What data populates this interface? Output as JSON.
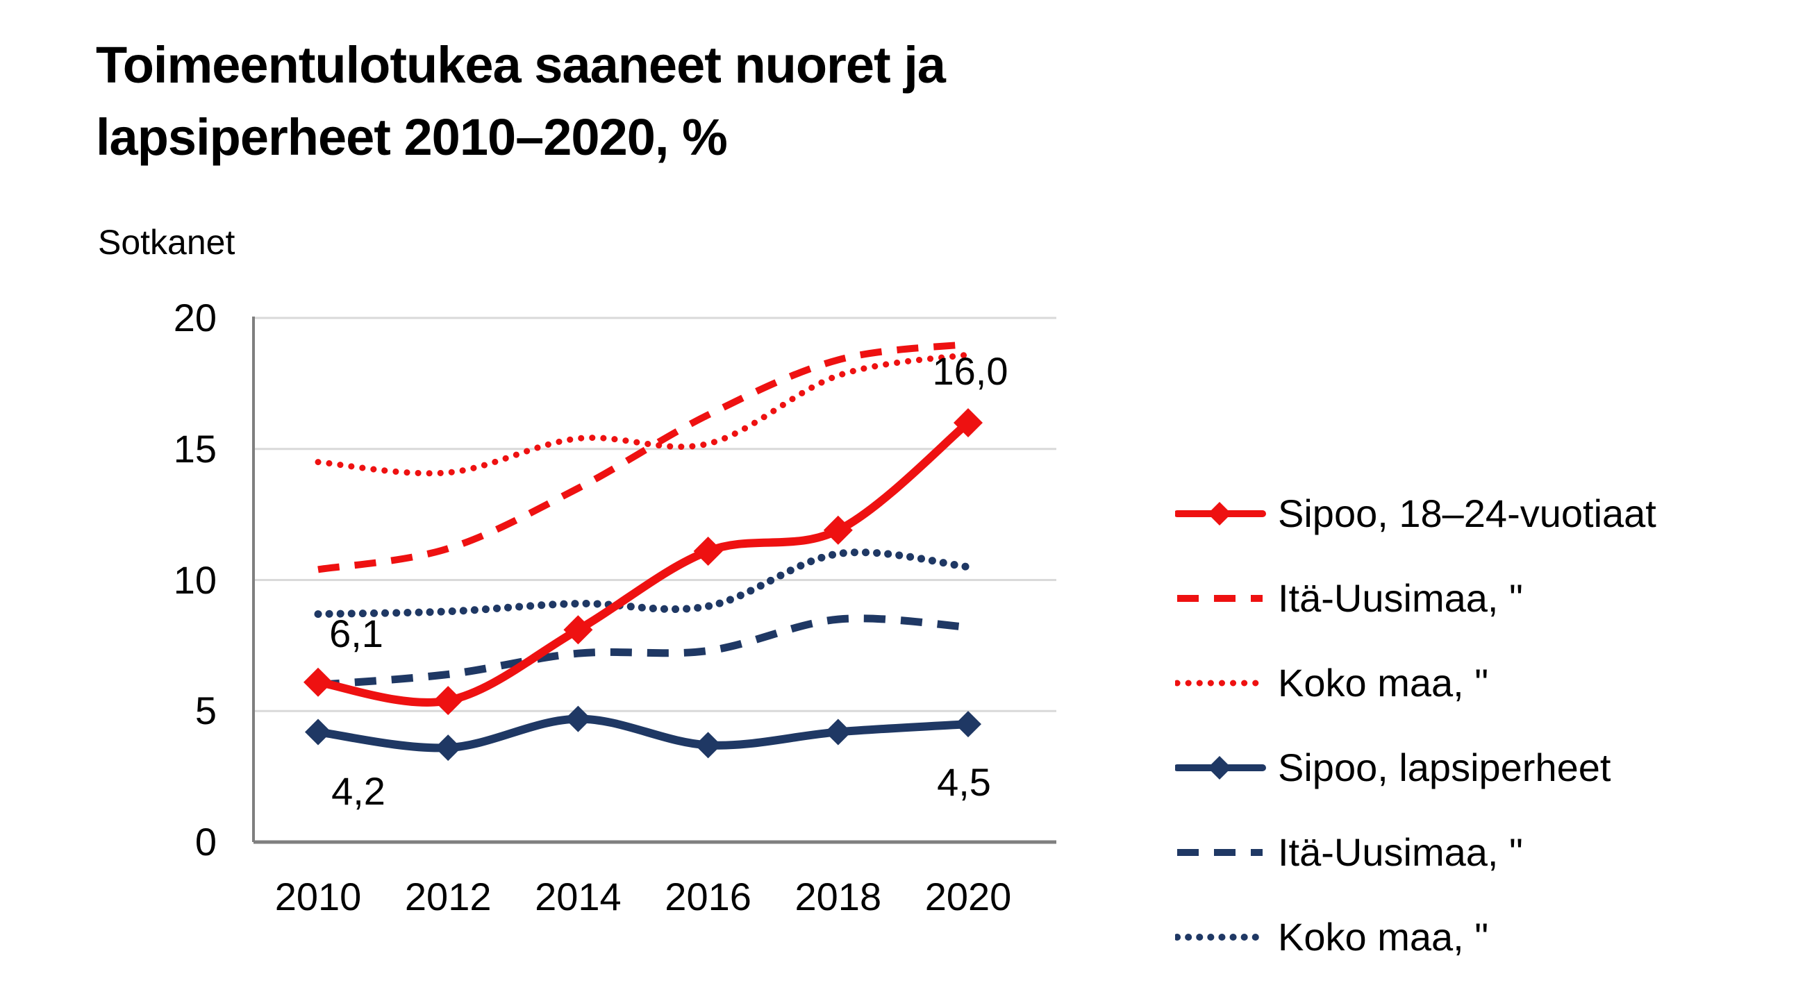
{
  "title": {
    "line1": "Toimeentulotukea saaneet nuoret ja",
    "line2": "lapsiperheet 2010–2020, %"
  },
  "subtitle": "Sotkanet",
  "chart_data": {
    "type": "line",
    "title": "Toimeentulotukea saaneet nuoret ja lapsiperheet 2010–2020, %",
    "subtitle": "Sotkanet",
    "x": [
      2010,
      2012,
      2014,
      2016,
      2018,
      2020
    ],
    "x_tick_labels": [
      "2010",
      "2012",
      "2014",
      "2016",
      "2018",
      "2020"
    ],
    "y_ticks": [
      0,
      5,
      10,
      15,
      20
    ],
    "ylim": [
      0,
      20
    ],
    "grid": "horizontal",
    "legend_position": "right",
    "series": [
      {
        "name": "Sipoo, 18–24-vuotiaat",
        "color": "#ee1111",
        "style": "solid",
        "marker": "diamond",
        "values": [
          6.1,
          5.4,
          8.1,
          11.1,
          11.9,
          16.0
        ]
      },
      {
        "name": "Itä-Uusimaa, \"",
        "color": "#ee1111",
        "style": "dashed",
        "marker": "none",
        "values": [
          10.4,
          11.2,
          13.5,
          16.3,
          18.4,
          19.0
        ]
      },
      {
        "name": "Koko maa, \"",
        "color": "#ee1111",
        "style": "dotted",
        "marker": "none",
        "values": [
          14.5,
          14.1,
          15.4,
          15.2,
          17.8,
          18.6
        ]
      },
      {
        "name": "Sipoo, lapsiperheet",
        "color": "#1f3864",
        "style": "solid",
        "marker": "diamond",
        "values": [
          4.2,
          3.6,
          4.7,
          3.7,
          4.2,
          4.5
        ]
      },
      {
        "name": "Itä-Uusimaa, \"",
        "color": "#1f3864",
        "style": "dashed",
        "marker": "none",
        "values": [
          6.0,
          6.4,
          7.2,
          7.3,
          8.5,
          8.2
        ]
      },
      {
        "name": "Koko maa, \"",
        "color": "#1f3864",
        "style": "dotted",
        "marker": "none",
        "values": [
          8.7,
          8.8,
          9.1,
          9.0,
          11.0,
          10.5
        ]
      }
    ],
    "point_labels": [
      {
        "text": "6,1",
        "series": 0,
        "year": 2010
      },
      {
        "text": "16,0",
        "series": 0,
        "year": 2020
      },
      {
        "text": "4,2",
        "series": 3,
        "year": 2010
      },
      {
        "text": "4,5",
        "series": 3,
        "year": 2020
      }
    ],
    "colors": {
      "red": "#ee1111",
      "navy": "#1f3864",
      "gridline": "#d9d9d9",
      "axis": "#7f7f7f",
      "text": "#000000",
      "background": "#ffffff"
    }
  }
}
